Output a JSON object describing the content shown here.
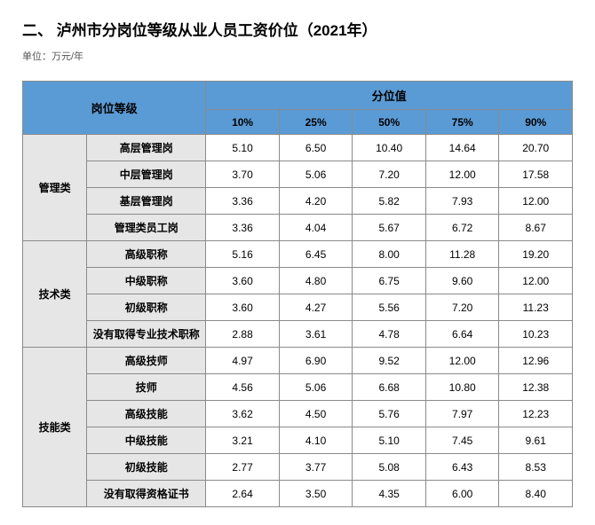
{
  "title": "二、 泸州市分岗位等级从业人员工资价位（2021年）",
  "unit": "单位：万元/年",
  "header": {
    "post_level": "岗位等级",
    "percentile": "分位值",
    "pcts": [
      "10%",
      "25%",
      "50%",
      "75%",
      "90%"
    ]
  },
  "categories": [
    {
      "name": "管理类",
      "rows": [
        {
          "label": "高层管理岗",
          "vals": [
            "5.10",
            "6.50",
            "10.40",
            "14.64",
            "20.70"
          ]
        },
        {
          "label": "中层管理岗",
          "vals": [
            "3.70",
            "5.06",
            "7.20",
            "12.00",
            "17.58"
          ]
        },
        {
          "label": "基层管理岗",
          "vals": [
            "3.36",
            "4.20",
            "5.82",
            "7.93",
            "12.00"
          ]
        },
        {
          "label": "管理类员工岗",
          "vals": [
            "3.36",
            "4.04",
            "5.67",
            "6.72",
            "8.67"
          ]
        }
      ]
    },
    {
      "name": "技术类",
      "rows": [
        {
          "label": "高级职称",
          "vals": [
            "5.16",
            "6.45",
            "8.00",
            "11.28",
            "19.20"
          ]
        },
        {
          "label": "中级职称",
          "vals": [
            "3.60",
            "4.80",
            "6.75",
            "9.60",
            "12.00"
          ]
        },
        {
          "label": "初级职称",
          "vals": [
            "3.60",
            "4.27",
            "5.56",
            "7.20",
            "11.23"
          ]
        },
        {
          "label": "没有取得专业技术职称",
          "vals": [
            "2.88",
            "3.61",
            "4.78",
            "6.64",
            "10.23"
          ]
        }
      ]
    },
    {
      "name": "技能类",
      "rows": [
        {
          "label": "高级技师",
          "vals": [
            "4.97",
            "6.90",
            "9.52",
            "12.00",
            "12.96"
          ]
        },
        {
          "label": "技师",
          "vals": [
            "4.56",
            "5.06",
            "6.68",
            "10.80",
            "12.38"
          ]
        },
        {
          "label": "高级技能",
          "vals": [
            "3.62",
            "4.50",
            "5.76",
            "7.97",
            "12.23"
          ]
        },
        {
          "label": "中级技能",
          "vals": [
            "3.21",
            "4.10",
            "5.10",
            "7.45",
            "9.61"
          ]
        },
        {
          "label": "初级技能",
          "vals": [
            "2.77",
            "3.77",
            "5.08",
            "6.43",
            "8.53"
          ]
        },
        {
          "label": "没有取得资格证书",
          "vals": [
            "2.64",
            "3.50",
            "4.35",
            "6.00",
            "8.40"
          ]
        }
      ]
    }
  ],
  "style": {
    "header_bg": "#5b9bd5",
    "category_bg": "#e6e6e6",
    "border_color": "#8a8a8a",
    "value_bg": "#ffffff",
    "font_family": "Microsoft YaHei",
    "title_fontsize": 17,
    "cell_fontsize": 12
  }
}
